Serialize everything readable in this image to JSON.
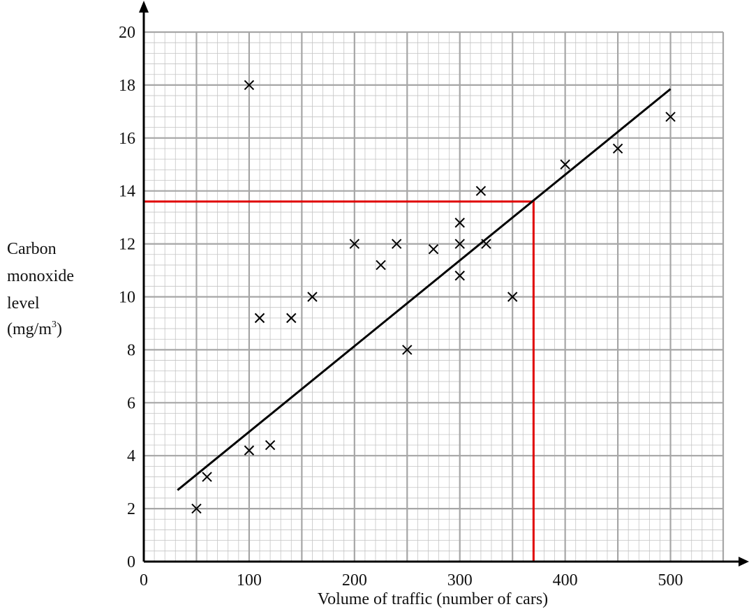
{
  "chart_data": {
    "type": "scatter",
    "xlabel": "Volume of traffic (number of cars)",
    "ylabel_lines": [
      "Carbon",
      "monoxide",
      "level"
    ],
    "ylabel_unit_base": "(mg/m",
    "ylabel_unit_sup": "3",
    "ylabel_unit_close": ")",
    "xlim": [
      0,
      550
    ],
    "ylim": [
      0,
      20
    ],
    "x_ticks": [
      0,
      100,
      200,
      300,
      400,
      500
    ],
    "y_ticks": [
      0,
      2,
      4,
      6,
      8,
      10,
      12,
      14,
      16,
      18,
      20
    ],
    "grid": true,
    "grid_major_x": 50,
    "grid_major_y": 2,
    "grid_minor_x": 10,
    "grid_minor_y": 0.4,
    "points": [
      {
        "x": 50,
        "y": 2
      },
      {
        "x": 60,
        "y": 3.2
      },
      {
        "x": 100,
        "y": 4.2
      },
      {
        "x": 120,
        "y": 4.4
      },
      {
        "x": 100,
        "y": 18
      },
      {
        "x": 110,
        "y": 9.2
      },
      {
        "x": 140,
        "y": 9.2
      },
      {
        "x": 160,
        "y": 10
      },
      {
        "x": 200,
        "y": 12
      },
      {
        "x": 225,
        "y": 11.2
      },
      {
        "x": 240,
        "y": 12
      },
      {
        "x": 250,
        "y": 8
      },
      {
        "x": 275,
        "y": 11.8
      },
      {
        "x": 300,
        "y": 12.8
      },
      {
        "x": 300,
        "y": 12
      },
      {
        "x": 300,
        "y": 10.8
      },
      {
        "x": 320,
        "y": 14
      },
      {
        "x": 325,
        "y": 12
      },
      {
        "x": 350,
        "y": 10
      },
      {
        "x": 400,
        "y": 15
      },
      {
        "x": 450,
        "y": 15.6
      },
      {
        "x": 500,
        "y": 16.8
      }
    ],
    "best_fit": {
      "x1": 32,
      "y1": 2.7,
      "x2": 500,
      "y2": 17.85
    },
    "reading_line": {
      "x": 370,
      "y": 13.6,
      "color": "#e00000"
    },
    "colors": {
      "grid_minor": "#c4c4c4",
      "grid_major": "#a6a6a6",
      "axis": "#000000",
      "points": "#000000",
      "fit": "#000000"
    }
  }
}
